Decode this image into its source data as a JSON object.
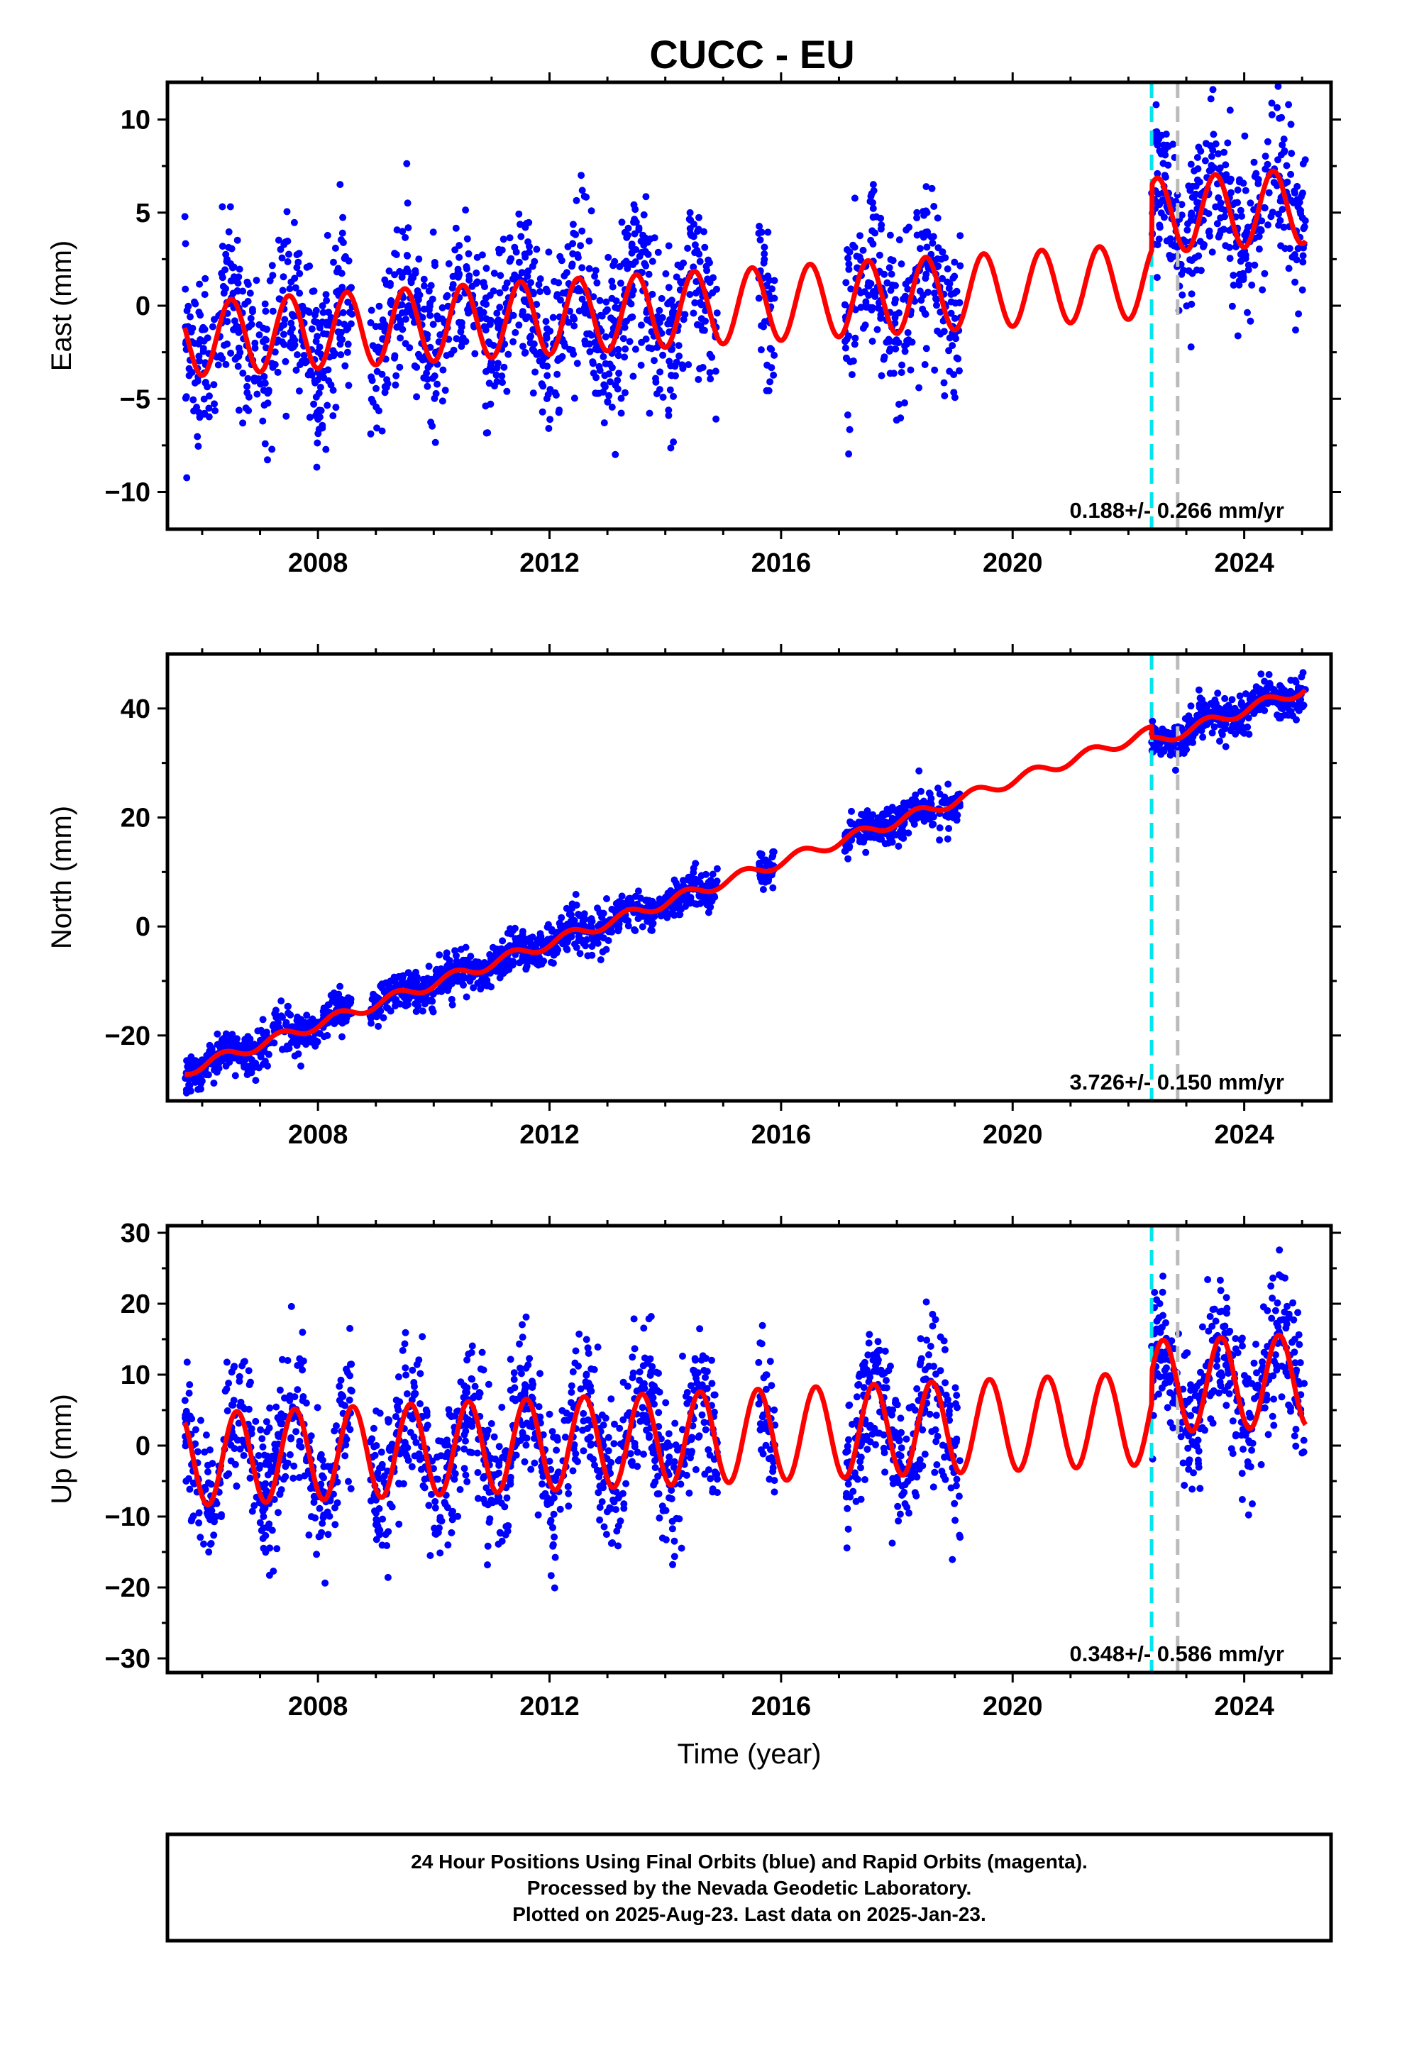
{
  "title": "CUCC - EU",
  "chart_data": [
    {
      "type": "scatter",
      "ylabel": "East (mm)",
      "xlabel": "",
      "xlim": [
        2005.4,
        2025.5
      ],
      "ylim": [
        -12,
        12
      ],
      "yticks": [
        -10,
        -5,
        0,
        5,
        10
      ],
      "xticks": [
        2008,
        2012,
        2016,
        2020,
        2024
      ],
      "rate_label": "0.188+/- 0.266 mm/yr",
      "rate": 0.188,
      "intercept": -1.8,
      "ref_year": 2005.7,
      "seasonal_amp": 2.0,
      "seasonal_phase": 0.25,
      "scatter_sigma": 2.2,
      "offsets": [
        {
          "year": 2022.4,
          "delta": 3.5
        }
      ],
      "data_segments": [
        [
          2005.7,
          2008.6
        ],
        [
          2008.9,
          2014.9
        ],
        [
          2015.6,
          2015.9
        ],
        [
          2017.1,
          2019.1
        ],
        [
          2022.4,
          2025.06
        ]
      ],
      "vlines": [
        {
          "year": 2022.4,
          "color": "#00e5ee"
        },
        {
          "year": 2022.85,
          "color": "#bbbbbb"
        }
      ]
    },
    {
      "type": "scatter",
      "ylabel": "North (mm)",
      "xlabel": "",
      "xlim": [
        2005.4,
        2025.5
      ],
      "ylim": [
        -32,
        50
      ],
      "yticks": [
        -20,
        0,
        20,
        40
      ],
      "xticks": [
        2008,
        2012,
        2016,
        2020,
        2024
      ],
      "rate_label": "3.726+/- 0.150 mm/yr",
      "rate": 3.726,
      "intercept": -26.5,
      "ref_year": 2005.7,
      "seasonal_amp": 1.0,
      "seasonal_phase": 0.1,
      "scatter_sigma": 1.8,
      "offsets": [
        {
          "year": 2022.4,
          "delta": -2.0
        }
      ],
      "data_segments": [
        [
          2005.7,
          2008.6
        ],
        [
          2008.9,
          2014.9
        ],
        [
          2015.6,
          2015.9
        ],
        [
          2017.1,
          2019.1
        ],
        [
          2022.4,
          2025.06
        ]
      ],
      "vlines": [
        {
          "year": 2022.4,
          "color": "#00e5ee"
        },
        {
          "year": 2022.85,
          "color": "#bbbbbb"
        }
      ]
    },
    {
      "type": "scatter",
      "ylabel": "Up (mm)",
      "xlabel": "Time (year)",
      "xlim": [
        2005.4,
        2025.5
      ],
      "ylim": [
        -32,
        31
      ],
      "yticks": [
        -30,
        -20,
        -10,
        0,
        10,
        20,
        30
      ],
      "xticks": [
        2008,
        2012,
        2016,
        2020,
        2024
      ],
      "rate_label": "0.348+/- 0.586 mm/yr",
      "rate": 0.348,
      "intercept": -2.0,
      "ref_year": 2005.7,
      "seasonal_amp": 6.5,
      "seasonal_phase": 0.35,
      "scatter_sigma": 5.0,
      "offsets": [
        {
          "year": 2022.4,
          "delta": 4.5
        }
      ],
      "data_segments": [
        [
          2005.7,
          2008.6
        ],
        [
          2008.9,
          2014.9
        ],
        [
          2015.6,
          2015.9
        ],
        [
          2017.1,
          2019.1
        ],
        [
          2022.4,
          2025.06
        ]
      ],
      "vlines": [
        {
          "year": 2022.4,
          "color": "#00e5ee"
        },
        {
          "year": 2022.85,
          "color": "#bbbbbb"
        }
      ]
    }
  ],
  "colors": {
    "points": "#0000ff",
    "model": "#ff0000",
    "axis": "#000000"
  },
  "footer": {
    "line1": "24 Hour Positions Using Final Orbits (blue) and Rapid Orbits (magenta).",
    "line2": "Processed by the Nevada Geodetic Laboratory.",
    "line3": "Plotted on 2025-Aug-23. Last data on 2025-Jan-23."
  }
}
